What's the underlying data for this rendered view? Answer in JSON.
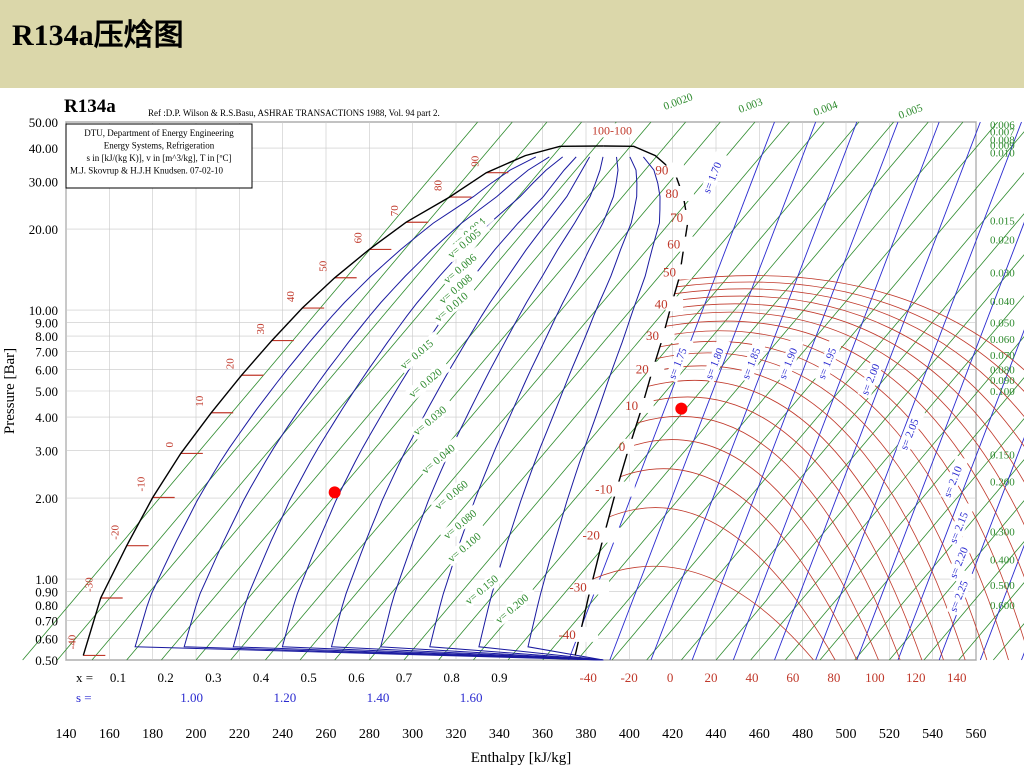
{
  "slide": {
    "title": "R134a压焓图"
  },
  "chart_data": {
    "type": "line",
    "title": "R134a",
    "reference": "Ref :D.P. Wilson & R.S.Basu, ASHRAE TRANSACTIONS 1988, Vol. 94 part 2.",
    "info_box": [
      "DTU, Department of Energy Engineering",
      "Energy Systems, Refrigeration",
      "s in [kJ/(kg K)], v in [m^3/kg], T in [ºC]",
      "M.J. Skovrup & H.J.H Knudsen. 07-02-10"
    ],
    "xlabel": "Enthalpy [kJ/kg]",
    "ylabel": "Pressure [Bar]",
    "y_scale": "log",
    "xlim": [
      140,
      560
    ],
    "ylim": [
      0.5,
      50
    ],
    "x_ticks": [
      "140",
      "160",
      "180",
      "200",
      "220",
      "240",
      "260",
      "280",
      "300",
      "320",
      "340",
      "360",
      "380",
      "400",
      "420",
      "440",
      "460",
      "480",
      "500",
      "520",
      "540",
      "560"
    ],
    "y_ticks": [
      "50.00",
      "40.00",
      "30.00",
      "20.00",
      "10.00",
      "9.00",
      "8.00",
      "7.00",
      "6.00",
      "5.00",
      "4.00",
      "3.00",
      "2.00",
      "1.00",
      "0.90",
      "0.80",
      "0.70",
      "0.60",
      "0.50"
    ],
    "quality_row": {
      "label": "x =",
      "values": [
        "0.1",
        "0.2",
        "0.3",
        "0.4",
        "0.5",
        "0.6",
        "0.7",
        "0.8",
        "0.9"
      ]
    },
    "superheat_temp_row": {
      "values": [
        "-40",
        "-20",
        "0",
        "20",
        "40",
        "60",
        "80",
        "100",
        "120",
        "140"
      ]
    },
    "entropy_row": {
      "label": "s =",
      "values": [
        "1.00",
        "1.20",
        "1.40",
        "1.60"
      ]
    },
    "saturation_temps": [
      "-40",
      "-30",
      "-20",
      "-10",
      "0",
      "10",
      "20",
      "30",
      "40",
      "50",
      "60",
      "70",
      "80",
      "90"
    ],
    "critical_label": "100-100",
    "vapor_temps": [
      "90",
      "80",
      "70",
      "60",
      "50",
      "40",
      "30",
      "20",
      "10",
      "0",
      "-10",
      "-20",
      "-30",
      "-40"
    ],
    "entropy_labels": [
      "s= 1.70",
      "s= 1.75",
      "s= 1.80",
      "s= 1.85",
      "s= 1.90",
      "s= 1.95",
      "s= 2.00",
      "s= 2.05",
      "s= 2.10",
      "s= 2.15",
      "s= 2.20",
      "s= 2.25"
    ],
    "volume_labels_inside": [
      "v= 0.004",
      "v= 0.005",
      "v= 0.006",
      "v= 0.008",
      "v= 0.010",
      "v= 0.015",
      "v= 0.020",
      "v= 0.030",
      "v= 0.040",
      "v= 0.060",
      "v= 0.080",
      "v= 0.100",
      "v= 0.150",
      "v= 0.200"
    ],
    "volume_labels_top": [
      "0.0020",
      "0.003",
      "0.004",
      "0.005"
    ],
    "volume_labels_right": [
      "0.006",
      "0.007",
      "0.008",
      "0.009",
      "0.010",
      "0.015",
      "0.020",
      "0.030",
      "0.040",
      "0.050",
      "0.060",
      "0.070",
      "0.080",
      "0.090",
      "0.100",
      "0.150",
      "0.200",
      "0.300",
      "0.400",
      "0.500",
      "0.600"
    ],
    "points": [
      {
        "h": 264,
        "p": 2.1
      },
      {
        "h": 424,
        "p": 4.3
      }
    ],
    "colors": {
      "header_bg": "#dbd7aa",
      "dome": "#000000",
      "quality_lines": "#1a1aa0",
      "isotherms": "#c0392b",
      "isochores": "#2e8b2e",
      "isentropes": "#2a2ad0",
      "points": "#ff0000",
      "label_red": "#c0392b",
      "label_blue": "#2a2ad0",
      "label_green": "#2e8b2e"
    }
  }
}
